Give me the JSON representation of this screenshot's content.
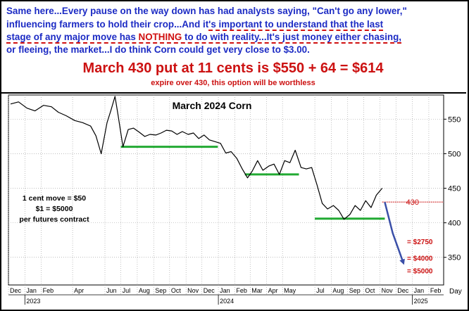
{
  "headline": {
    "line1": "Same here...Every pause on the way down has had analysts saying, \"Can't go any lower,\"",
    "line2a": "influencing farmers to hold their crop...And it",
    "line2b": "'s important to understand that the last",
    "line3a": "stage of any major move has ",
    "line3b": "NOTHING",
    "line3c": " to do with reality...It's just money either chasing,",
    "line4": "or fleeing, the market...I do think Corn could get very close to $3.00.",
    "offer": "March 430 put at 11 cents is $550 + 64 = $614",
    "expire": "expire over 430, this option will be worthless"
  },
  "colors": {
    "headline_blue": "#1c2bc4",
    "accent_red": "#cc1111",
    "support_green": "#22aa33",
    "arrow_blue": "#3a4fa8",
    "price_black": "#000000"
  },
  "chart_data": {
    "type": "line",
    "title": "March 2024 Corn",
    "xlabel": "",
    "ylabel": "",
    "ylim": [
      310,
      585
    ],
    "xlim": [
      "2022-12-01",
      "2025-03-01"
    ],
    "y_ticks": [
      350,
      400,
      450,
      500,
      550
    ],
    "x_ticks": [
      {
        "label": "Dec",
        "date": "2022-12-01"
      },
      {
        "label": "Jan",
        "date": "2023-01-01"
      },
      {
        "label": "Feb",
        "date": "2023-02-01"
      },
      {
        "label": "Apr",
        "date": "2023-04-01"
      },
      {
        "label": "Jun",
        "date": "2023-06-01"
      },
      {
        "label": "Jul",
        "date": "2023-07-01"
      },
      {
        "label": "Aug",
        "date": "2023-08-01"
      },
      {
        "label": "Sep",
        "date": "2023-09-01"
      },
      {
        "label": "Oct",
        "date": "2023-10-01"
      },
      {
        "label": "Nov",
        "date": "2023-11-01"
      },
      {
        "label": "Dec",
        "date": "2023-12-01"
      },
      {
        "label": "Jan",
        "date": "2024-01-01"
      },
      {
        "label": "Feb",
        "date": "2024-02-01"
      },
      {
        "label": "Mar",
        "date": "2024-03-01"
      },
      {
        "label": "Apr",
        "date": "2024-04-01"
      },
      {
        "label": "May",
        "date": "2024-05-01"
      },
      {
        "label": "Jul",
        "date": "2024-07-01"
      },
      {
        "label": "Aug",
        "date": "2024-08-01"
      },
      {
        "label": "Sep",
        "date": "2024-09-01"
      },
      {
        "label": "Oct",
        "date": "2024-10-01"
      },
      {
        "label": "Nov",
        "date": "2024-11-01"
      },
      {
        "label": "Dec",
        "date": "2024-12-01"
      },
      {
        "label": "Jan",
        "date": "2025-01-01"
      },
      {
        "label": "Feb",
        "date": "2025-02-01"
      }
    ],
    "year_labels": [
      {
        "label": "2023",
        "date": "2023-01-01"
      },
      {
        "label": "2024",
        "date": "2024-01-01"
      },
      {
        "label": "2025",
        "date": "2025-01-01"
      }
    ],
    "x_axis_unit": "Day",
    "grid": true,
    "series": [
      {
        "x": [
          "2022-12-05",
          "2022-12-20",
          "2023-01-05",
          "2023-01-20",
          "2023-02-05",
          "2023-02-20",
          "2023-03-05",
          "2023-03-20",
          "2023-04-05",
          "2023-04-20",
          "2023-05-05",
          "2023-05-15",
          "2023-05-25",
          "2023-06-05",
          "2023-06-12",
          "2023-06-20",
          "2023-06-26",
          "2023-07-05",
          "2023-07-15",
          "2023-07-25",
          "2023-08-05",
          "2023-08-15",
          "2023-08-25",
          "2023-09-05",
          "2023-09-15",
          "2023-09-25",
          "2023-10-05",
          "2023-10-15",
          "2023-10-25",
          "2023-11-05",
          "2023-11-15",
          "2023-11-25",
          "2023-12-05",
          "2023-12-15",
          "2024-01-05",
          "2024-01-15",
          "2024-01-25",
          "2024-02-05",
          "2024-02-15",
          "2024-02-25",
          "2024-03-05",
          "2024-03-15",
          "2024-03-25",
          "2024-04-05",
          "2024-04-15",
          "2024-04-25",
          "2024-05-05",
          "2024-05-15",
          "2024-05-25",
          "2024-06-05",
          "2024-06-15",
          "2024-06-25",
          "2024-07-05",
          "2024-07-15",
          "2024-07-25",
          "2024-08-05",
          "2024-08-15",
          "2024-08-25",
          "2024-09-05",
          "2024-09-15",
          "2024-09-25",
          "2024-10-05",
          "2024-10-15",
          "2024-10-25",
          "2024-11-05"
        ],
        "values": [
          572,
          575,
          566,
          562,
          570,
          568,
          560,
          555,
          548,
          545,
          540,
          526,
          500,
          545,
          562,
          583,
          555,
          510,
          535,
          537,
          531,
          525,
          528,
          527,
          530,
          534,
          533,
          528,
          532,
          528,
          530,
          522,
          527,
          520,
          515,
          501,
          503,
          493,
          478,
          465,
          475,
          490,
          476,
          482,
          485,
          470,
          490,
          487,
          505,
          480,
          478,
          480,
          455,
          428,
          420,
          425,
          418,
          405,
          412,
          425,
          418,
          432,
          422,
          440,
          450
        ]
      }
    ],
    "support_lines": [
      {
        "y": 510,
        "x": [
          "2023-07-01",
          "2023-12-31"
        ]
      },
      {
        "y": 470,
        "x": [
          "2024-02-20",
          "2024-06-01"
        ]
      },
      {
        "y": 406,
        "x": [
          "2024-07-01",
          "2024-11-10"
        ]
      }
    ],
    "put_strike": {
      "value": 430,
      "label": "430",
      "x_start": "2024-11-05"
    },
    "projection_arrow": {
      "x": [
        "2024-11-10",
        "2024-11-25",
        "2024-12-15"
      ],
      "y": [
        430,
        385,
        342
      ]
    },
    "targets": [
      {
        "label": "= $2750",
        "y": 373
      },
      {
        "label": "= $4000",
        "y": 349
      },
      {
        "label": "= $5000",
        "y": 331
      }
    ],
    "annotation": [
      "1 cent move = $50",
      "$1 = $5000",
      "per futures contract"
    ]
  }
}
